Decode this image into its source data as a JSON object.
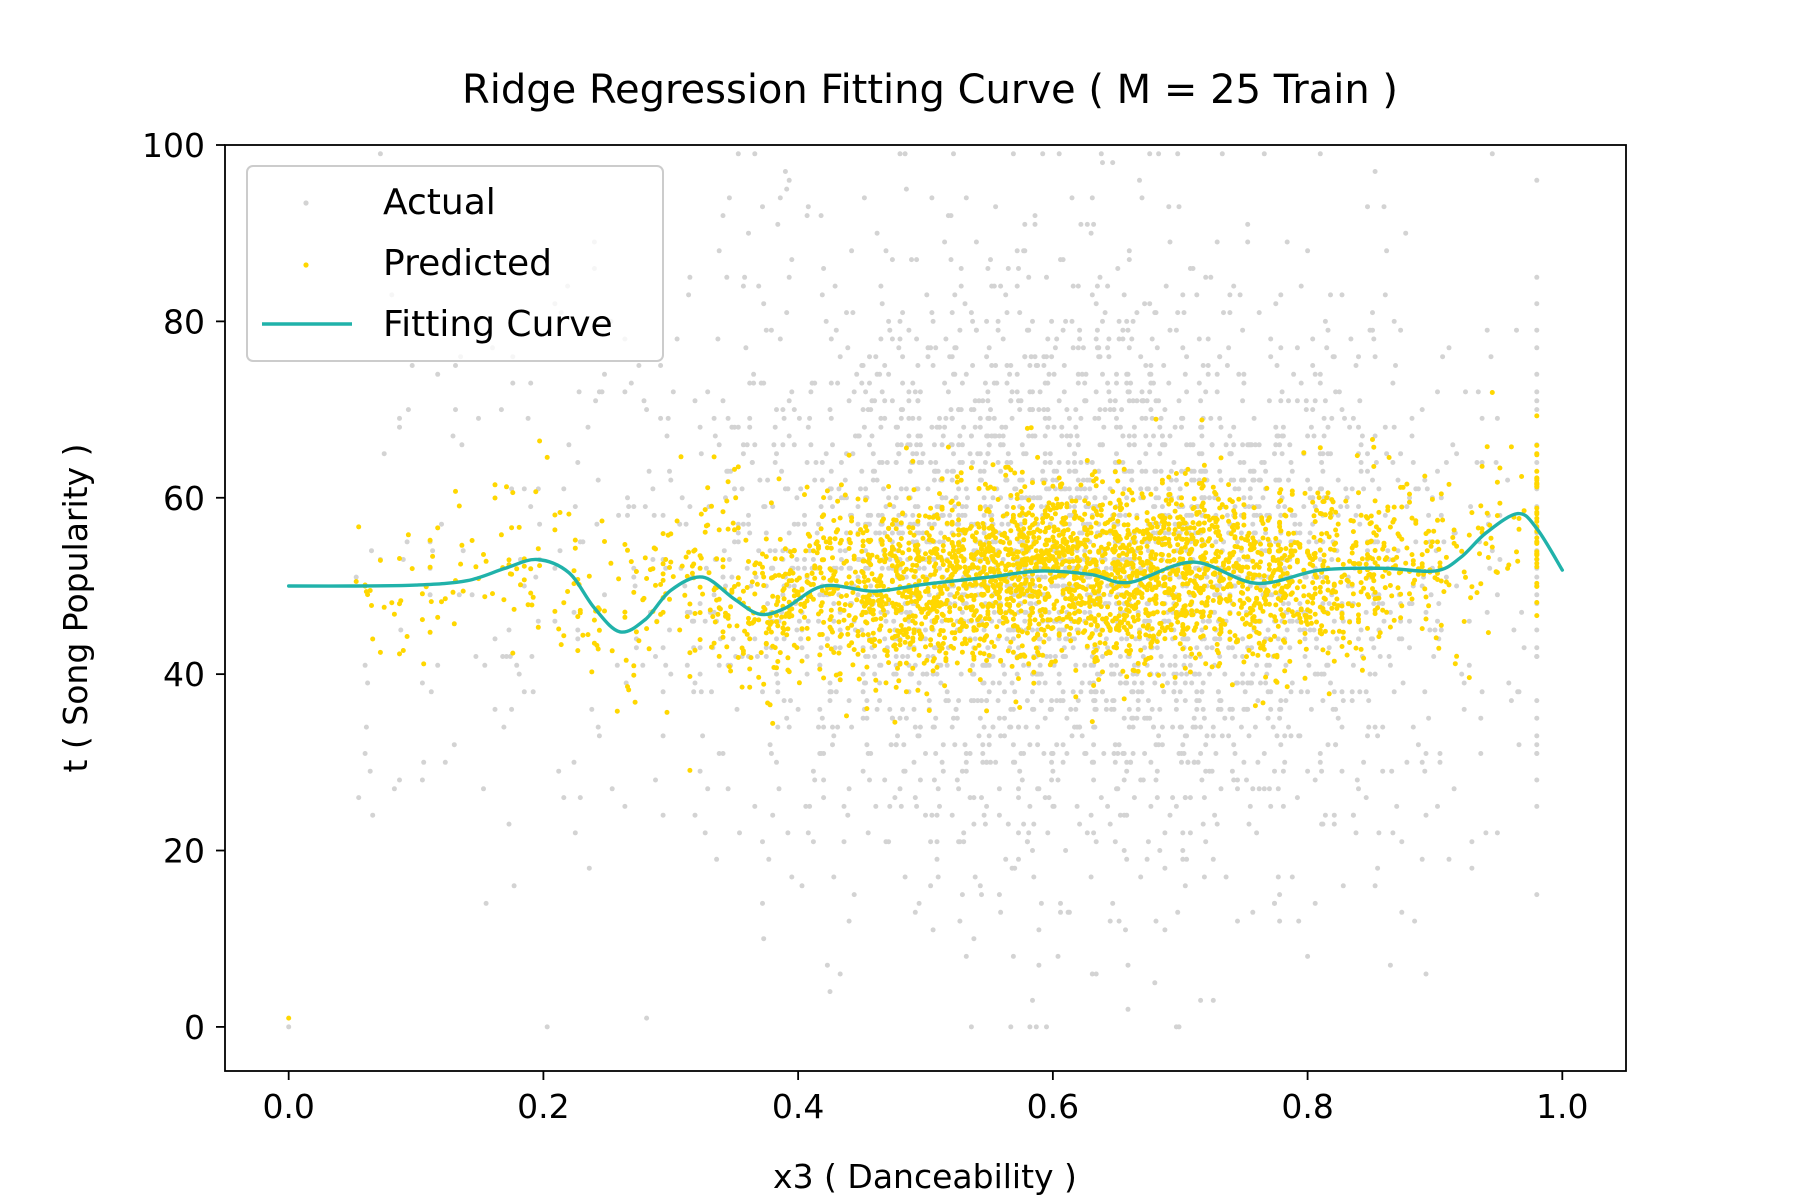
{
  "chart_data": {
    "type": "scatter",
    "title": "Ridge Regression Fitting Curve ( M = 25 Train )",
    "xlabel": "x3 ( Danceability )",
    "ylabel": "t ( Song Popularity )",
    "xlim": [
      -0.05,
      1.05
    ],
    "ylim": [
      -5,
      100
    ],
    "xticks": [
      0.0,
      0.2,
      0.4,
      0.6,
      0.8,
      1.0
    ],
    "xtick_labels": [
      "0.0",
      "0.2",
      "0.4",
      "0.6",
      "0.8",
      "1.0"
    ],
    "yticks": [
      0,
      20,
      40,
      60,
      80,
      100
    ],
    "ytick_labels": [
      "0",
      "20",
      "40",
      "60",
      "80",
      "100"
    ],
    "grid": false,
    "legend_position": "top-left",
    "series": [
      {
        "name": "Actual",
        "kind": "scatter",
        "color": "#d3d3d3",
        "point_count": 3200,
        "x_range": [
          0.0,
          0.98
        ],
        "y_range": [
          0,
          99
        ],
        "x_center": 0.62,
        "y_center": 52
      },
      {
        "name": "Predicted",
        "kind": "scatter",
        "color": "#ffd700",
        "point_count": 3200,
        "x_range": [
          0.0,
          0.98
        ],
        "y_range": [
          1,
          72
        ],
        "x_center": 0.62,
        "y_center": 51.5
      },
      {
        "name": "Fitting Curve",
        "kind": "line",
        "color": "#20b2aa",
        "x": [
          0.0,
          0.05,
          0.1,
          0.14,
          0.17,
          0.195,
          0.22,
          0.24,
          0.26,
          0.28,
          0.3,
          0.325,
          0.35,
          0.37,
          0.39,
          0.42,
          0.46,
          0.5,
          0.55,
          0.59,
          0.63,
          0.66,
          0.71,
          0.76,
          0.81,
          0.86,
          0.9,
          0.92,
          0.94,
          0.965,
          0.98,
          1.0
        ],
        "y": [
          50.0,
          50.0,
          50.1,
          50.6,
          52.0,
          53.0,
          51.5,
          47.5,
          44.8,
          46.2,
          49.5,
          51.0,
          48.5,
          46.8,
          47.5,
          50.0,
          49.4,
          50.2,
          51.0,
          51.7,
          51.3,
          50.4,
          52.7,
          50.3,
          51.8,
          52.0,
          51.7,
          53.2,
          56.0,
          58.2,
          56.5,
          51.8
        ]
      }
    ]
  }
}
